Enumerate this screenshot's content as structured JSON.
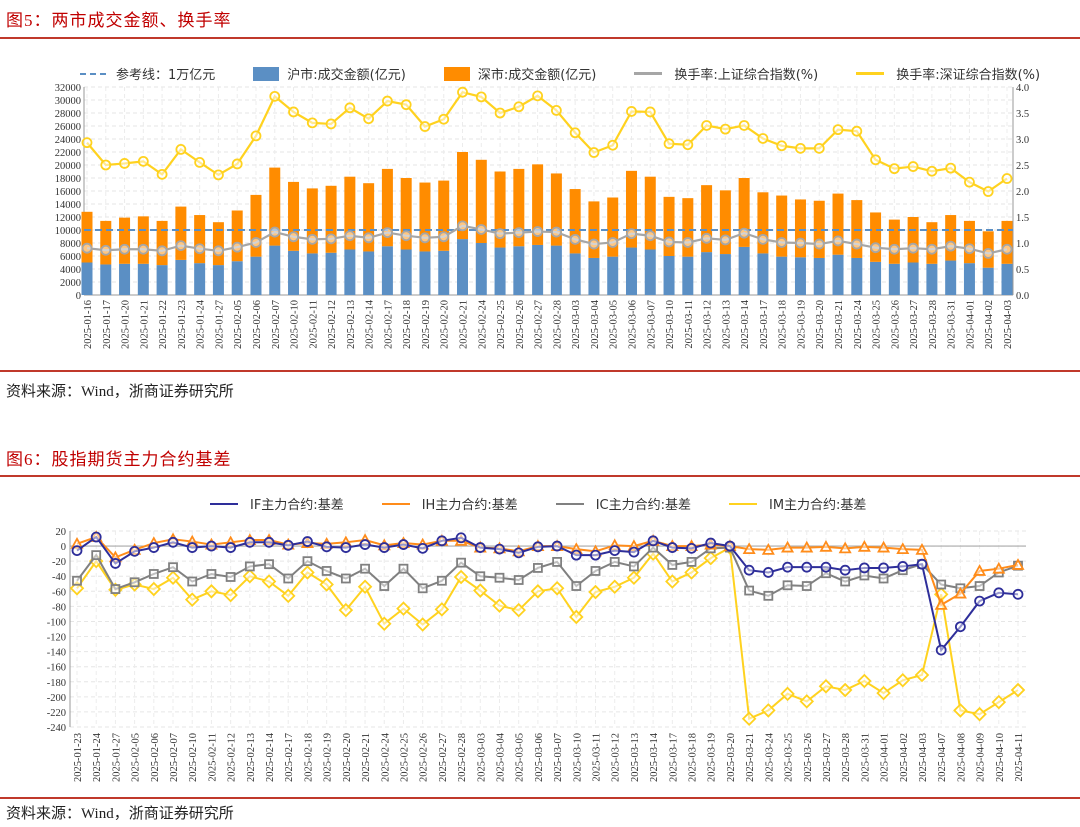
{
  "figure5": {
    "title": "图5：两市成交金额、换手率",
    "source": "资料来源：Wind，浙商证券研究所"
  },
  "figure6": {
    "title": "图6：股指期货主力合约基差",
    "source": "资料来源：Wind，浙商证券研究所"
  },
  "chart_data": [
    {
      "type": "bar",
      "title": "两市成交金额、换手率",
      "categories": [
        "2025-01-16",
        "2025-01-17",
        "2025-01-20",
        "2025-01-21",
        "2025-01-22",
        "2025-01-23",
        "2025-01-24",
        "2025-01-27",
        "2025-02-05",
        "2025-02-06",
        "2025-02-07",
        "2025-02-10",
        "2025-02-11",
        "2025-02-12",
        "2025-02-13",
        "2025-02-14",
        "2025-02-17",
        "2025-02-18",
        "2025-02-19",
        "2025-02-20",
        "2025-02-21",
        "2025-02-24",
        "2025-02-25",
        "2025-02-26",
        "2025-02-27",
        "2025-02-28",
        "2025-03-03",
        "2025-03-04",
        "2025-03-05",
        "2025-03-06",
        "2025-03-07",
        "2025-03-10",
        "2025-03-11",
        "2025-03-12",
        "2025-03-13",
        "2025-03-14",
        "2025-03-17",
        "2025-03-18",
        "2025-03-19",
        "2025-03-20",
        "2025-03-21",
        "2025-03-24",
        "2025-03-25",
        "2025-03-26",
        "2025-03-27",
        "2025-03-28",
        "2025-03-31",
        "2025-04-01",
        "2025-04-02",
        "2025-04-03"
      ],
      "reference_line": {
        "name": "参考线：1万亿元",
        "value": 10000,
        "color": "#5B8FC4"
      },
      "series": [
        {
          "name": "沪市:成交金额(亿元)",
          "kind": "stacked-bar",
          "axis": "left",
          "color": "#5B8FC4",
          "values": [
            5000,
            4700,
            4800,
            4800,
            4600,
            5400,
            4900,
            4600,
            5200,
            5900,
            7600,
            6800,
            6400,
            6500,
            7000,
            6700,
            7500,
            7000,
            6700,
            6800,
            8600,
            8000,
            7300,
            7500,
            7700,
            7600,
            6400,
            5700,
            5900,
            7300,
            7000,
            6000,
            5900,
            6600,
            6300,
            7400,
            6400,
            5900,
            5800,
            5700,
            6200,
            5700,
            5100,
            4800,
            5000,
            4800,
            5300,
            4900,
            4200,
            4800
          ]
        },
        {
          "name": "深市:成交金额(亿元)",
          "kind": "stacked-bar",
          "axis": "left",
          "color": "#FF8C00",
          "values": [
            7800,
            6700,
            7100,
            7300,
            6800,
            8200,
            7400,
            6600,
            7800,
            9500,
            12000,
            10600,
            10000,
            10300,
            11200,
            10500,
            11900,
            11000,
            10600,
            10800,
            13400,
            12800,
            11700,
            11900,
            12400,
            11100,
            9900,
            8700,
            9100,
            11800,
            11200,
            9100,
            9000,
            10300,
            9800,
            10600,
            9400,
            9400,
            8900,
            8800,
            9400,
            8900,
            7600,
            6800,
            7000,
            6400,
            7000,
            6500,
            5600,
            6600
          ]
        },
        {
          "name": "换手率:上证综合指数(%)",
          "kind": "line",
          "axis": "right",
          "color": "#A6A6A6",
          "values": [
            0.9,
            0.86,
            0.88,
            0.88,
            0.85,
            0.95,
            0.89,
            0.85,
            0.92,
            1.01,
            1.21,
            1.12,
            1.07,
            1.08,
            1.14,
            1.1,
            1.2,
            1.14,
            1.1,
            1.12,
            1.33,
            1.26,
            1.18,
            1.2,
            1.22,
            1.21,
            1.07,
            0.98,
            1.01,
            1.18,
            1.14,
            1.02,
            1.01,
            1.09,
            1.06,
            1.19,
            1.07,
            1.01,
            1.0,
            0.98,
            1.04,
            0.98,
            0.91,
            0.88,
            0.9,
            0.88,
            0.94,
            0.89,
            0.8,
            0.88
          ]
        },
        {
          "name": "换手率:深证综合指数(%)",
          "kind": "line",
          "axis": "right",
          "color": "#FFD21F",
          "values": [
            2.93,
            2.5,
            2.53,
            2.57,
            2.32,
            2.8,
            2.55,
            2.31,
            2.52,
            3.06,
            3.82,
            3.52,
            3.31,
            3.29,
            3.6,
            3.39,
            3.73,
            3.66,
            3.24,
            3.38,
            3.9,
            3.81,
            3.5,
            3.62,
            3.83,
            3.55,
            3.12,
            2.74,
            2.88,
            3.53,
            3.52,
            2.91,
            2.89,
            3.26,
            3.19,
            3.26,
            3.01,
            2.87,
            2.82,
            2.82,
            3.18,
            3.15,
            2.6,
            2.43,
            2.47,
            2.38,
            2.44,
            2.17,
            1.99,
            2.24
          ]
        }
      ],
      "ylim": [
        0,
        32000
      ],
      "yticks": [
        "0",
        "2000",
        "4000",
        "6000",
        "8000",
        "10000",
        "12000",
        "14000",
        "16000",
        "18000",
        "20000",
        "22000",
        "24000",
        "26000",
        "28000",
        "30000",
        "32000"
      ],
      "y2lim": [
        0,
        4.0
      ],
      "y2ticks": [
        "0.0",
        "0.5",
        "1.0",
        "1.5",
        "2.0",
        "2.5",
        "3.0",
        "3.5",
        "4.0"
      ],
      "legend": "top",
      "grid": true
    },
    {
      "type": "line",
      "title": "股指期货主力合约基差",
      "categories": [
        "2025-01-23",
        "2025-01-24",
        "2025-01-27",
        "2025-02-05",
        "2025-02-06",
        "2025-02-07",
        "2025-02-10",
        "2025-02-11",
        "2025-02-12",
        "2025-02-13",
        "2025-02-14",
        "2025-02-17",
        "2025-02-18",
        "2025-02-19",
        "2025-02-20",
        "2025-02-21",
        "2025-02-24",
        "2025-02-25",
        "2025-02-26",
        "2025-02-27",
        "2025-02-28",
        "2025-03-03",
        "2025-03-04",
        "2025-03-05",
        "2025-03-06",
        "2025-03-07",
        "2025-03-10",
        "2025-03-11",
        "2025-03-12",
        "2025-03-13",
        "2025-03-14",
        "2025-03-17",
        "2025-03-18",
        "2025-03-19",
        "2025-03-20",
        "2025-03-21",
        "2025-03-24",
        "2025-03-25",
        "2025-03-26",
        "2025-03-27",
        "2025-03-28",
        "2025-03-31",
        "2025-04-01",
        "2025-04-02",
        "2025-04-03",
        "2025-04-07",
        "2025-04-08",
        "2025-04-09",
        "2025-04-10",
        "2025-04-11"
      ],
      "series": [
        {
          "name": "IF主力合约:基差",
          "marker": "circle",
          "color": "#2E2E9A",
          "values": [
            -6,
            12,
            -23,
            -7,
            -2,
            5,
            -2,
            0,
            -2,
            5,
            5,
            1,
            6,
            -1,
            -2,
            2,
            -2,
            2,
            -3,
            7,
            11,
            -2,
            -4,
            -9,
            -1,
            0,
            -12,
            -12,
            -6,
            -8,
            7,
            -2,
            -3,
            4,
            0,
            -32,
            -35,
            -28,
            -28,
            -28,
            -32,
            -29,
            -29,
            -27,
            -24,
            -138,
            -107,
            -73,
            -62,
            -64
          ]
        },
        {
          "name": "IH主力合约:基差",
          "marker": "triangle",
          "color": "#FF8C1A",
          "values": [
            3,
            12,
            -15,
            -5,
            4,
            9,
            6,
            2,
            5,
            8,
            8,
            2,
            4,
            3,
            5,
            8,
            1,
            4,
            2,
            7,
            7,
            -2,
            -3,
            -7,
            0,
            0,
            -4,
            -7,
            1,
            0,
            7,
            0,
            0,
            2,
            0,
            -4,
            -5,
            -2,
            -2,
            -1,
            -3,
            -1,
            -2,
            -4,
            -5,
            -78,
            -63,
            -33,
            -30,
            -25
          ]
        },
        {
          "name": "IC主力合约:基差",
          "marker": "square",
          "color": "#808080",
          "values": [
            -46,
            -12,
            -57,
            -48,
            -37,
            -28,
            -47,
            -37,
            -41,
            -27,
            -24,
            -43,
            -20,
            -33,
            -43,
            -30,
            -53,
            -30,
            -56,
            -46,
            -22,
            -40,
            -42,
            -45,
            -29,
            -21,
            -53,
            -33,
            -21,
            -27,
            -2,
            -25,
            -21,
            -3,
            -2,
            -59,
            -66,
            -52,
            -53,
            -36,
            -47,
            -39,
            -43,
            -32,
            -24,
            -51,
            -56,
            -53,
            -35,
            -26
          ]
        },
        {
          "name": "IM主力合约:基差",
          "marker": "diamond",
          "color": "#FFD21F",
          "values": [
            -56,
            -20,
            -58,
            -51,
            -57,
            -42,
            -71,
            -60,
            -65,
            -40,
            -47,
            -66,
            -35,
            -51,
            -85,
            -54,
            -103,
            -83,
            -104,
            -84,
            -41,
            -59,
            -79,
            -85,
            -60,
            -56,
            -94,
            -61,
            -54,
            -42,
            -10,
            -47,
            -35,
            -16,
            -2,
            -229,
            -218,
            -196,
            -206,
            -186,
            -191,
            -179,
            -195,
            -178,
            -171,
            -64,
            -218,
            -223,
            -207,
            -191
          ]
        }
      ],
      "ylim": [
        -240,
        20
      ],
      "yticks": [
        "20",
        "0",
        "-20",
        "-40",
        "-60",
        "-80",
        "-100",
        "-120",
        "-140",
        "-160",
        "-180",
        "-200",
        "-220",
        "-240"
      ],
      "legend": "top",
      "grid": true
    }
  ]
}
